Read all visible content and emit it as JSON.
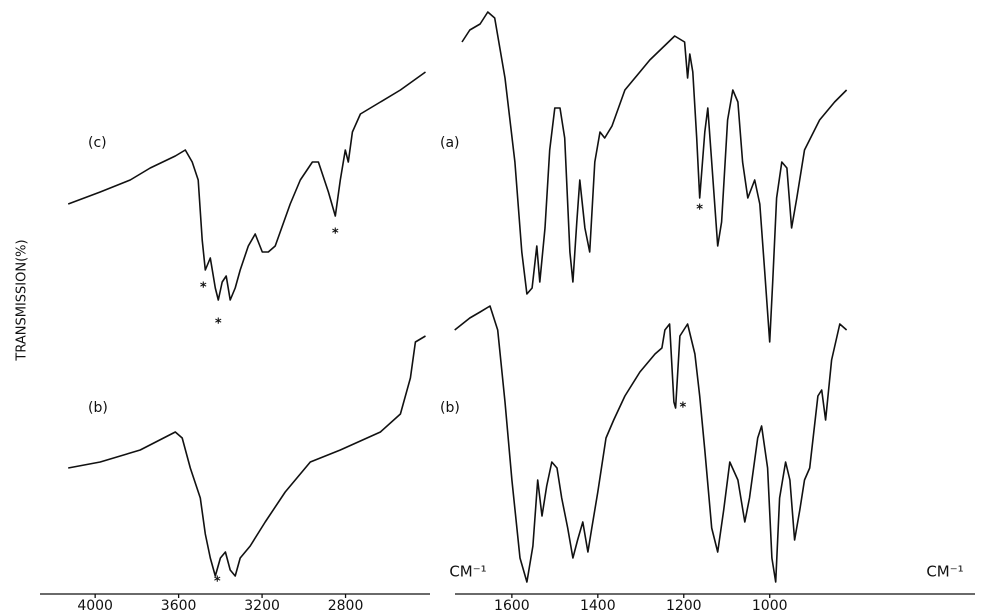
{
  "chart_data": [
    {
      "type": "line",
      "y_label": "TRANSMISSION(%)",
      "x_label": "CM⁻¹",
      "xlim": [
        4250,
        2400
      ],
      "xticks": [
        4000,
        3600,
        3200,
        2800
      ],
      "ylim": [
        0,
        100
      ],
      "series": [
        {
          "name": "(c)",
          "color": "#111111",
          "x": [
            4129,
            3976,
            3832,
            3736,
            3616,
            3568,
            3535,
            3506,
            3487,
            3472,
            3448,
            3424,
            3410,
            3391,
            3372,
            3353,
            3329,
            3305,
            3266,
            3233,
            3199,
            3170,
            3137,
            3065,
            3017,
            2959,
            2930,
            2882,
            2849,
            2825,
            2801,
            2787,
            2767,
            2729,
            2633,
            2537,
            2417
          ],
          "values": [
            66,
            68,
            70,
            72,
            74,
            75,
            73,
            70,
            60,
            55,
            57,
            52,
            50,
            53,
            54,
            50,
            52,
            55,
            59,
            61,
            58,
            58,
            59,
            66,
            70,
            73,
            73,
            68,
            64,
            70,
            75,
            73,
            78,
            81,
            83,
            85,
            88
          ]
        },
        {
          "name": "(b)",
          "color": "#111111",
          "x": [
            4129,
            3976,
            3784,
            3616,
            3583,
            3544,
            3496,
            3472,
            3448,
            3424,
            3400,
            3376,
            3353,
            3329,
            3305,
            3257,
            3185,
            3089,
            2969,
            2825,
            2633,
            2537,
            2489,
            2465,
            2417
          ],
          "values": [
            22,
            23,
            25,
            28,
            27,
            22,
            17,
            11,
            7,
            4,
            7,
            8,
            5,
            4,
            7,
            9,
            13,
            18,
            23,
            25,
            28,
            31,
            37,
            43,
            44
          ]
        }
      ],
      "annotations": [
        {
          "text": "*",
          "x": 3482,
          "y": 52
        },
        {
          "text": "*",
          "x": 3410,
          "y": 46
        },
        {
          "text": "*",
          "x": 2849,
          "y": 61
        },
        {
          "text": "*",
          "x": 3415,
          "y": 3
        }
      ]
    },
    {
      "type": "line",
      "x_label": "CM⁻¹",
      "xlim": [
        1730,
        520
      ],
      "xticks": [
        1600,
        1400,
        1200,
        1000
      ],
      "ylim": [
        0,
        100
      ],
      "series": [
        {
          "name": "(a)",
          "color": "#111111",
          "x": [
            1716,
            1698,
            1674,
            1656,
            1640,
            1616,
            1593,
            1577,
            1565,
            1553,
            1542,
            1535,
            1523,
            1512,
            1500,
            1488,
            1477,
            1465,
            1458,
            1449,
            1442,
            1430,
            1419,
            1407,
            1395,
            1384,
            1367,
            1337,
            1279,
            1221,
            1198,
            1191,
            1186,
            1179,
            1170,
            1163,
            1151,
            1144,
            1135,
            1121,
            1112,
            1098,
            1086,
            1074,
            1063,
            1051,
            1035,
            1023,
            1012,
            1000,
            993,
            984,
            972,
            960,
            949,
            937,
            919,
            884,
            849,
            821
          ],
          "values": [
            93,
            95,
            96,
            98,
            97,
            87,
            73,
            58,
            51,
            52,
            59,
            53,
            62,
            75,
            82,
            82,
            77,
            58,
            53,
            63,
            70,
            62,
            58,
            73,
            78,
            77,
            79,
            85,
            90,
            94,
            93,
            87,
            91,
            88,
            77,
            67,
            78,
            82,
            73,
            59,
            63,
            80,
            85,
            83,
            73,
            67,
            70,
            66,
            55,
            43,
            53,
            67,
            73,
            72,
            62,
            67,
            75,
            80,
            83,
            85
          ]
        },
        {
          "name": "(b)",
          "color": "#111111",
          "x": [
            1733,
            1698,
            1674,
            1651,
            1633,
            1616,
            1600,
            1581,
            1565,
            1551,
            1540,
            1530,
            1519,
            1507,
            1495,
            1484,
            1470,
            1458,
            1447,
            1435,
            1423,
            1414,
            1400,
            1381,
            1363,
            1337,
            1302,
            1267,
            1251,
            1244,
            1233,
            1223,
            1219,
            1209,
            1191,
            1174,
            1163,
            1151,
            1135,
            1121,
            1107,
            1093,
            1074,
            1058,
            1047,
            1028,
            1019,
            1005,
            995,
            986,
            977,
            963,
            953,
            942,
            930,
            919,
            907,
            888,
            879,
            870,
            856,
            837,
            821
          ],
          "values": [
            45,
            47,
            48,
            49,
            45,
            33,
            20,
            7,
            3,
            9,
            20,
            14,
            19,
            23,
            22,
            17,
            12,
            7,
            10,
            13,
            8,
            12,
            18,
            27,
            30,
            34,
            38,
            41,
            42,
            45,
            46,
            33,
            32,
            44,
            46,
            41,
            34,
            25,
            12,
            8,
            15,
            23,
            20,
            13,
            17,
            27,
            29,
            22,
            7,
            3,
            17,
            23,
            20,
            10,
            15,
            20,
            22,
            34,
            35,
            30,
            40,
            46,
            45
          ]
        }
      ],
      "annotations": [
        {
          "text": "*",
          "x": 1163,
          "y": 65
        },
        {
          "text": "*",
          "x": 1202,
          "y": 32
        }
      ]
    }
  ]
}
